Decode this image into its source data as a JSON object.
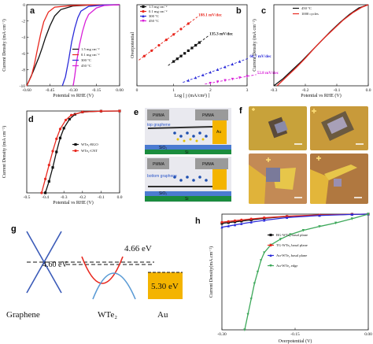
{
  "chart_data": [
    {
      "panel": "a",
      "type": "line",
      "xlabel": "Potential vs RHE (V)",
      "ylabel": "Current Density (mA cm⁻²)",
      "xlim": [
        -0.6,
        0.0
      ],
      "ylim": [
        -10,
        0
      ],
      "xticks": [
        "-0.60",
        "-0.45",
        "-0.30",
        "-0.15",
        "0.00"
      ],
      "yticks": [
        "-10",
        "-8",
        "-6",
        "-4",
        "-2",
        "0"
      ],
      "series": [
        {
          "name": "1.5 mg cm⁻²",
          "color": "#111111",
          "x": [
            -0.6,
            -0.56,
            -0.52,
            -0.5,
            -0.48,
            -0.45,
            -0.42,
            -0.38,
            -0.3,
            -0.2,
            0.0
          ],
          "y": [
            -10,
            -8.3,
            -6.4,
            -5.3,
            -4.1,
            -2.6,
            -1.4,
            -0.6,
            -0.15,
            -0.05,
            0
          ]
        },
        {
          "name": "0.1 mg cm⁻²",
          "color": "#e8281f",
          "x": [
            -0.6,
            -0.57,
            -0.55,
            -0.53,
            -0.51,
            -0.49,
            -0.46,
            -0.42,
            -0.3,
            -0.2,
            0.0
          ],
          "y": [
            -10,
            -8.8,
            -7.3,
            -5.4,
            -3.6,
            -2.1,
            -0.9,
            -0.3,
            -0.08,
            -0.03,
            0
          ]
        },
        {
          "name": "300 °C",
          "color": "#2b2bd9",
          "x": [
            -0.37,
            -0.35,
            -0.33,
            -0.31,
            -0.29,
            -0.27,
            -0.25,
            -0.2,
            -0.1,
            0.0
          ],
          "y": [
            -10,
            -8.9,
            -6.9,
            -4.6,
            -2.9,
            -1.6,
            -0.8,
            -0.2,
            -0.03,
            0
          ]
        },
        {
          "name": "450 °C",
          "color": "#d81fd8",
          "x": [
            -0.3,
            -0.29,
            -0.28,
            -0.26,
            -0.24,
            -0.22,
            -0.2,
            -0.15,
            -0.1,
            0.0
          ],
          "y": [
            -10,
            -8.8,
            -7.3,
            -5.0,
            -3.3,
            -2.0,
            -1.2,
            -0.4,
            -0.1,
            0
          ]
        }
      ]
    },
    {
      "panel": "b",
      "type": "scatter",
      "xlabel": "Log [ j (mA/cm²) ]",
      "ylabel": "Overpotential",
      "xlim": [
        0,
        3
      ],
      "ylim": [
        0,
        0.6
      ],
      "xticks": [
        "0",
        "1",
        "2",
        "3"
      ],
      "series": [
        {
          "name": "1.5 mg cm⁻²",
          "color": "#111111",
          "marker": "square",
          "slope_label": "135.3 mV/dec",
          "x": [
            1.0,
            1.1,
            1.2,
            1.3,
            1.4,
            1.5,
            1.6,
            1.7
          ],
          "y": [
            0.18,
            0.2,
            0.22,
            0.24,
            0.26,
            0.28,
            0.3,
            0.32
          ]
        },
        {
          "name": "0.1 mg cm⁻²",
          "color": "#e8281f",
          "marker": "circle",
          "slope_label": "188.1 mV/dec",
          "x": [
            0.2,
            0.4,
            0.6,
            0.8,
            1.0,
            1.2,
            1.4
          ],
          "y": [
            0.22,
            0.26,
            0.3,
            0.34,
            0.38,
            0.42,
            0.46
          ]
        },
        {
          "name": "300 °C",
          "color": "#2b2bd9",
          "marker": "triangle",
          "slope_label": "60.7 mV/dec",
          "x": [
            1.4,
            1.6,
            1.8,
            2.0,
            2.2,
            2.4,
            2.6,
            2.8
          ],
          "y": [
            0.04,
            0.06,
            0.08,
            0.1,
            0.12,
            0.14,
            0.16,
            0.18
          ]
        },
        {
          "name": "450 °C",
          "color": "#d81fd8",
          "marker": "triangle-down",
          "slope_label": "52.8 mV/dec",
          "x": [
            2.0,
            2.2,
            2.4,
            2.6,
            2.8,
            3.0
          ],
          "y": [
            0.02,
            0.03,
            0.04,
            0.05,
            0.06,
            0.07
          ]
        }
      ]
    },
    {
      "panel": "c",
      "type": "line",
      "xlabel": "Potential vs RHE (V)",
      "ylabel": "Current Density (mA cm⁻²)",
      "xlim": [
        -0.3,
        0.0
      ],
      "xticks": [
        "-0.3",
        "-0.2",
        "-0.1",
        "0.0"
      ],
      "series": [
        {
          "name": "450 °C",
          "color": "#111111",
          "x": [
            -0.3,
            -0.27,
            -0.24,
            -0.21,
            -0.18,
            -0.15,
            -0.12,
            -0.09,
            -0.06,
            -0.03,
            0.0
          ],
          "y": [
            -10,
            -9.1,
            -8.0,
            -6.9,
            -5.7,
            -4.5,
            -3.3,
            -2.2,
            -1.2,
            -0.4,
            0
          ]
        },
        {
          "name": "1000 cycles",
          "color": "#e8281f",
          "x": [
            -0.29,
            -0.26,
            -0.23,
            -0.2,
            -0.17,
            -0.14,
            -0.11,
            -0.08,
            -0.05,
            -0.02,
            0.0
          ],
          "y": [
            -10,
            -8.9,
            -7.8,
            -6.6,
            -5.3,
            -4.1,
            -3.0,
            -1.9,
            -1.0,
            -0.3,
            0
          ]
        }
      ]
    },
    {
      "panel": "d",
      "type": "line",
      "xlabel": "Potential vs RHE (V)",
      "ylabel": "Current Density (mA cm⁻²)",
      "xlim": [
        -0.5,
        0.0
      ],
      "ylim": [
        -10,
        0
      ],
      "xticks": [
        "-0.5",
        "-0.4",
        "-0.3",
        "-0.2",
        "-0.1",
        "0.0"
      ],
      "series": [
        {
          "name": "WTe₂-RGO",
          "color": "#111111",
          "marker": "square",
          "x": [
            -0.4,
            -0.38,
            -0.36,
            -0.34,
            -0.32,
            -0.3,
            -0.27,
            -0.24,
            -0.2,
            -0.1,
            0.0
          ],
          "y": [
            -10,
            -8.6,
            -6.9,
            -5.0,
            -3.3,
            -2.1,
            -1.0,
            -0.4,
            -0.12,
            -0.02,
            0
          ]
        },
        {
          "name": "WTe₂-CNT",
          "color": "#e8281f",
          "marker": "circle",
          "x": [
            -0.42,
            -0.4,
            -0.38,
            -0.36,
            -0.34,
            -0.32,
            -0.29,
            -0.26,
            -0.2,
            -0.1,
            0.0
          ],
          "y": [
            -10,
            -8.3,
            -6.6,
            -4.9,
            -3.4,
            -2.2,
            -1.1,
            -0.5,
            -0.12,
            -0.02,
            0
          ]
        }
      ]
    },
    {
      "panel": "h",
      "type": "line",
      "xlabel": "Overpotential (V)",
      "ylabel": "Current Density(mA.cm⁻²)",
      "xlim": [
        -0.45,
        0.0
      ],
      "xticks": [
        "-0.30",
        "-0.15",
        "0.00"
      ],
      "series": [
        {
          "name": "BG-WTe₂ basal plane",
          "color": "#111111",
          "marker": "square",
          "x": [
            -0.45,
            -0.43,
            -0.41,
            -0.39,
            -0.36,
            -0.32,
            -0.25,
            -0.15,
            -0.05,
            0.0
          ],
          "y": [
            -2.4,
            -2.2,
            -2.0,
            -1.8,
            -1.5,
            -1.1,
            -0.6,
            -0.25,
            -0.05,
            0
          ]
        },
        {
          "name": "TG-WTe₂ basal plane",
          "color": "#e8281f",
          "marker": "circle",
          "x": [
            -0.45,
            -0.43,
            -0.41,
            -0.39,
            -0.36,
            -0.32,
            -0.25,
            -0.15,
            -0.05,
            0.0
          ],
          "y": [
            -2.1,
            -1.9,
            -1.7,
            -1.5,
            -1.25,
            -0.95,
            -0.55,
            -0.22,
            -0.05,
            0
          ]
        },
        {
          "name": "Au-WTe₂ basal plane",
          "color": "#2b2bd9",
          "marker": "triangle",
          "x": [
            -0.45,
            -0.43,
            -0.41,
            -0.39,
            -0.36,
            -0.32,
            -0.25,
            -0.15,
            -0.05,
            0.0
          ],
          "y": [
            -3.4,
            -3.1,
            -2.8,
            -2.5,
            -2.1,
            -1.6,
            -0.9,
            -0.35,
            -0.08,
            0
          ]
        },
        {
          "name": "Au-WTe₂ edge",
          "color": "#3da85a",
          "marker": "triangle-down",
          "x": [
            -0.38,
            -0.37,
            -0.36,
            -0.35,
            -0.34,
            -0.33,
            -0.32,
            -0.3,
            -0.27,
            -0.24,
            -0.2,
            -0.15,
            -0.1,
            -0.05,
            0.0
          ],
          "y": [
            -30,
            -26,
            -22,
            -18,
            -15,
            -12,
            -10,
            -8,
            -6.5,
            -5.3,
            -4.2,
            -3.2,
            -2.3,
            -1.2,
            0
          ]
        }
      ]
    }
  ],
  "panels": {
    "a": {
      "label": "a"
    },
    "b": {
      "label": "b",
      "overpotential_label": "Overpotential"
    },
    "c": {
      "label": "c"
    },
    "d": {
      "label": "d"
    },
    "e": {
      "label": "e",
      "top_layer": "top graphene",
      "bottom_layer": "bottom graphene",
      "pmma": "PMMA",
      "au": "Au",
      "sio2": "SiO₂",
      "si": "Si"
    },
    "f": {
      "label": "f"
    },
    "g": {
      "label": "g",
      "graphene_energy": "4.60 eV",
      "wte2_energy": "4.66 eV",
      "au_energy": "5.30 eV",
      "graphene": "Graphene",
      "wte2": "WTe₂",
      "au": "Au"
    },
    "h": {
      "label": "h"
    }
  },
  "colors": {
    "black": "#111111",
    "red": "#e8281f",
    "blue": "#2b2bd9",
    "magenta": "#d81fd8",
    "green": "#3da85a",
    "gold": "#f4b400"
  }
}
